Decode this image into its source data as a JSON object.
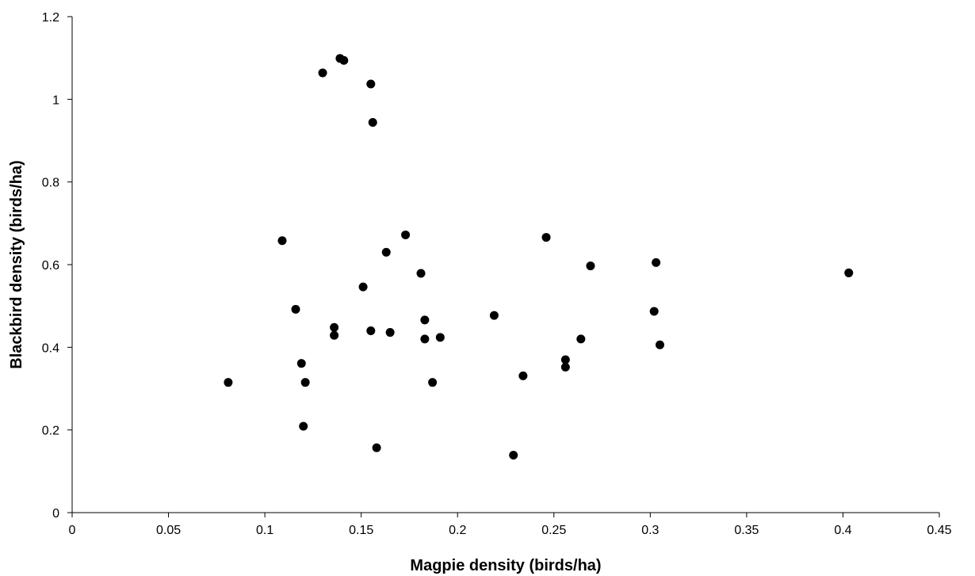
{
  "chart_data": {
    "type": "scatter",
    "title": "",
    "xlabel": "Magpie density (birds/ha)",
    "ylabel": "Blackbird density (birds/ha)",
    "xlim": [
      0,
      0.45
    ],
    "ylim": [
      0,
      1.2
    ],
    "x_ticks": [
      0,
      0.05,
      0.1,
      0.15,
      0.2,
      0.25,
      0.3,
      0.35,
      0.4,
      0.45
    ],
    "x_tick_labels": [
      "0",
      "0.05",
      "0.1",
      "0.15",
      "0.2",
      "0.25",
      "0.3",
      "0.35",
      "0.4",
      "0.45"
    ],
    "y_ticks": [
      0,
      0.2,
      0.4,
      0.6,
      0.8,
      1.0,
      1.2
    ],
    "y_tick_labels": [
      "0",
      "0.2",
      "0.4",
      "0.6",
      "0.8",
      "1",
      "1.2"
    ],
    "grid": false,
    "legend": "none",
    "marker_color": "#000000",
    "points": [
      {
        "x": 0.081,
        "y": 0.315
      },
      {
        "x": 0.109,
        "y": 0.658
      },
      {
        "x": 0.116,
        "y": 0.492
      },
      {
        "x": 0.119,
        "y": 0.361
      },
      {
        "x": 0.12,
        "y": 0.209
      },
      {
        "x": 0.121,
        "y": 0.315
      },
      {
        "x": 0.13,
        "y": 1.064
      },
      {
        "x": 0.136,
        "y": 0.429
      },
      {
        "x": 0.136,
        "y": 0.448
      },
      {
        "x": 0.139,
        "y": 1.099
      },
      {
        "x": 0.141,
        "y": 1.094
      },
      {
        "x": 0.151,
        "y": 0.546
      },
      {
        "x": 0.155,
        "y": 0.44
      },
      {
        "x": 0.155,
        "y": 1.037
      },
      {
        "x": 0.156,
        "y": 0.944
      },
      {
        "x": 0.158,
        "y": 0.157
      },
      {
        "x": 0.163,
        "y": 0.63
      },
      {
        "x": 0.165,
        "y": 0.436
      },
      {
        "x": 0.173,
        "y": 0.672
      },
      {
        "x": 0.181,
        "y": 0.579
      },
      {
        "x": 0.183,
        "y": 0.466
      },
      {
        "x": 0.183,
        "y": 0.42
      },
      {
        "x": 0.187,
        "y": 0.315
      },
      {
        "x": 0.191,
        "y": 0.424
      },
      {
        "x": 0.219,
        "y": 0.477
      },
      {
        "x": 0.229,
        "y": 0.139
      },
      {
        "x": 0.234,
        "y": 0.331
      },
      {
        "x": 0.246,
        "y": 0.666
      },
      {
        "x": 0.256,
        "y": 0.352
      },
      {
        "x": 0.256,
        "y": 0.37
      },
      {
        "x": 0.264,
        "y": 0.42
      },
      {
        "x": 0.269,
        "y": 0.597
      },
      {
        "x": 0.302,
        "y": 0.487
      },
      {
        "x": 0.303,
        "y": 0.605
      },
      {
        "x": 0.305,
        "y": 0.406
      },
      {
        "x": 0.403,
        "y": 0.58
      }
    ]
  }
}
